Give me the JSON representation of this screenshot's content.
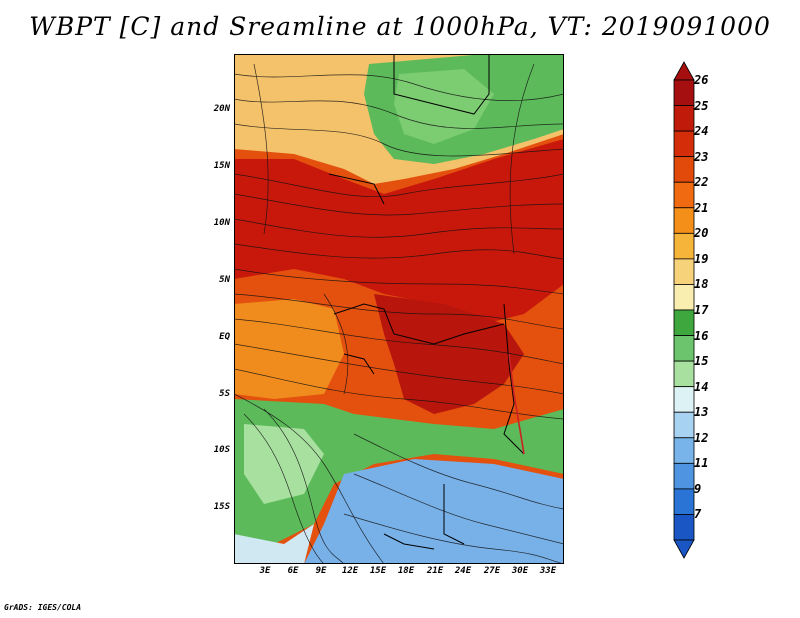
{
  "title": "WBPT [C] and Sreamline at 1000hPa, VT: 2019091000",
  "footer": "GrADS: IGES/COLA",
  "y_axis_labels": [
    "20N",
    "15N",
    "10N",
    "5N",
    "EQ",
    "5S",
    "10S",
    "15S"
  ],
  "x_axis_labels": [
    "3E",
    "6E",
    "9E",
    "12E",
    "15E",
    "18E",
    "21E",
    "24E",
    "27E",
    "30E",
    "33E"
  ],
  "colorbar": {
    "labels": [
      "26",
      "25",
      "24",
      "23",
      "22",
      "21",
      "20",
      "19",
      "18",
      "17",
      "16",
      "15",
      "14",
      "13",
      "12",
      "11",
      "9",
      "7"
    ],
    "colors": [
      "#a50f0f",
      "#c01a0a",
      "#d42d0a",
      "#e24a0c",
      "#ef6a10",
      "#f4901a",
      "#f7b43a",
      "#f6d27a",
      "#f9eeb0",
      "#3ea83e",
      "#6cc46c",
      "#a8e0a0",
      "#dcf2f4",
      "#a8d2f2",
      "#78b4ea",
      "#4e94e0",
      "#2a74d6",
      "#1a56c4"
    ]
  },
  "map_colors": {
    "hot": "#c8180c",
    "warm": "#e4500e",
    "orange": "#f08c1e",
    "tan": "#f4c26a",
    "green": "#5cba5a",
    "lightgreen": "#a8e0a0",
    "blue": "#78b0e8",
    "paleblue": "#cfe8f2"
  }
}
